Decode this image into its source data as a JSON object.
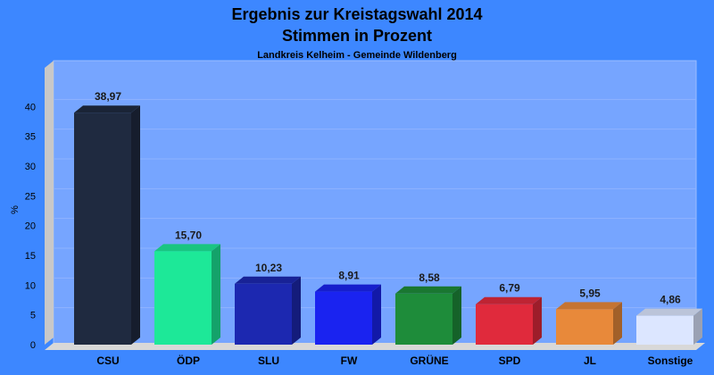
{
  "chart_data": {
    "type": "bar",
    "title": "Ergebnis zur Kreistagswahl 2014",
    "subtitle": "Stimmen in Prozent",
    "subtitle2": "Landkreis Kelheim - Gemeinde Wildenberg",
    "ylabel": "%",
    "ylim": [
      0,
      45
    ],
    "yticks": [
      0,
      5,
      10,
      15,
      20,
      25,
      30,
      35,
      40
    ],
    "categories": [
      "CSU",
      "ÖDP",
      "SLU",
      "FW",
      "GRÜNE",
      "SPD",
      "JL",
      "Sonstige"
    ],
    "values": [
      38.97,
      15.7,
      10.23,
      8.91,
      8.58,
      6.79,
      5.95,
      4.86
    ],
    "value_labels": [
      "38,97",
      "15,70",
      "10,23",
      "8,91",
      "8,58",
      "6,79",
      "5,95",
      "4,86"
    ],
    "colors": [
      "#1f2a40",
      "#1de898",
      "#1c28b0",
      "#1a23f0",
      "#1e8c3a",
      "#e02a3c",
      "#e8893a",
      "#dce6ff"
    ],
    "grid": true,
    "legend": false
  }
}
